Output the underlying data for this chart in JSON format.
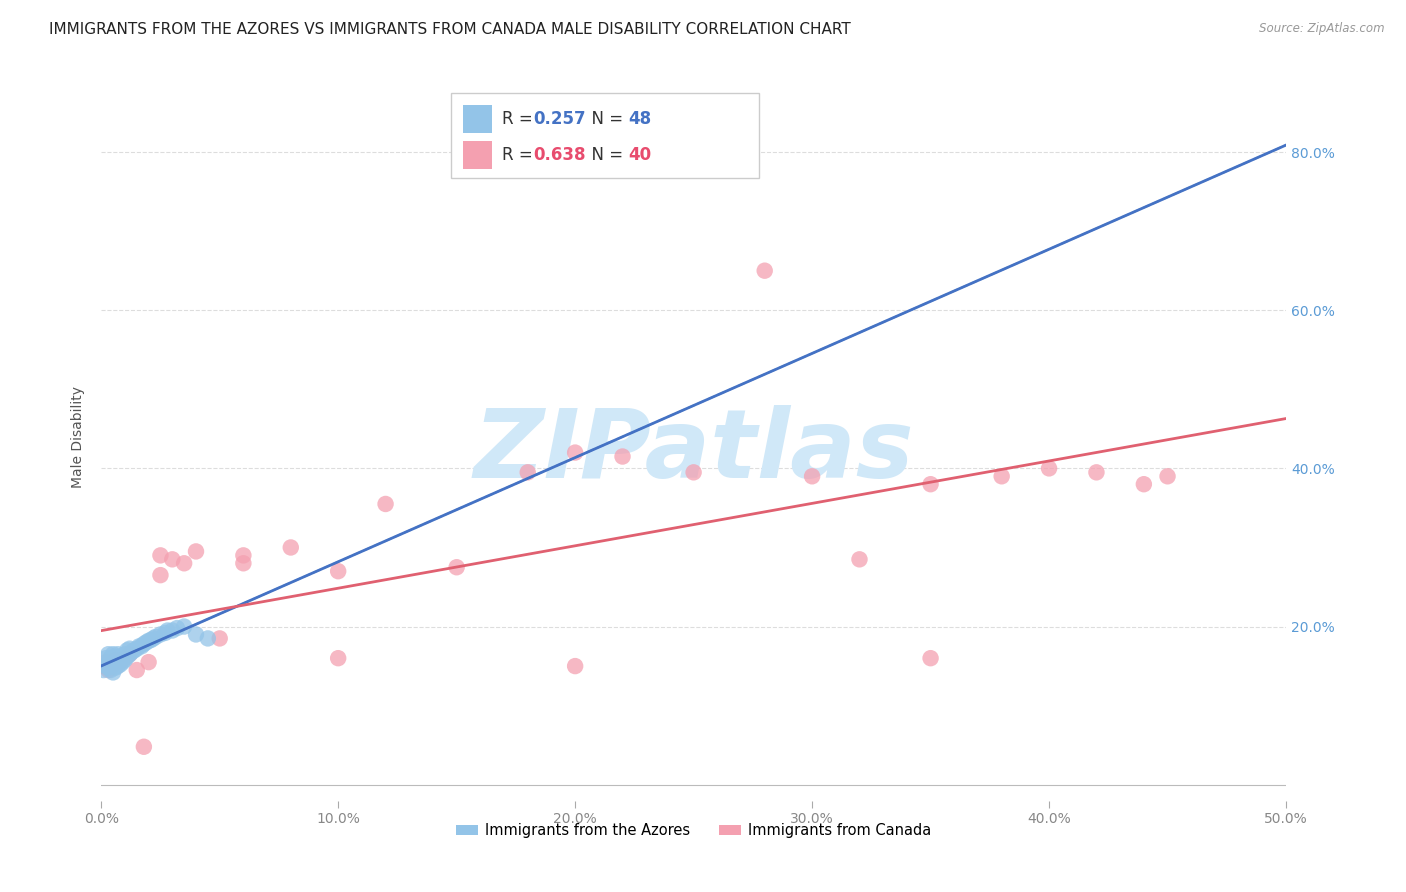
{
  "title": "IMMIGRANTS FROM THE AZORES VS IMMIGRANTS FROM CANADA MALE DISABILITY CORRELATION CHART",
  "source": "Source: ZipAtlas.com",
  "ylabel": "Male Disability",
  "x_tick_labels": [
    "0.0%",
    "10.0%",
    "20.0%",
    "30.0%",
    "40.0%",
    "50.0%"
  ],
  "y_tick_labels_right": [
    "20.0%",
    "40.0%",
    "60.0%",
    "80.0%"
  ],
  "xlim": [
    0.0,
    0.5
  ],
  "ylim": [
    -0.02,
    0.9
  ],
  "azores_R": "0.257",
  "azores_N": "48",
  "canada_R": "0.638",
  "canada_N": "40",
  "azores_x": [
    0.001,
    0.002,
    0.002,
    0.003,
    0.003,
    0.003,
    0.004,
    0.004,
    0.004,
    0.005,
    0.005,
    0.005,
    0.005,
    0.006,
    0.006,
    0.006,
    0.007,
    0.007,
    0.007,
    0.008,
    0.008,
    0.009,
    0.009,
    0.01,
    0.01,
    0.011,
    0.011,
    0.012,
    0.012,
    0.013,
    0.014,
    0.015,
    0.016,
    0.017,
    0.018,
    0.019,
    0.02,
    0.021,
    0.022,
    0.023,
    0.025,
    0.027,
    0.028,
    0.03,
    0.032,
    0.035,
    0.04,
    0.045
  ],
  "azores_y": [
    0.145,
    0.15,
    0.16,
    0.148,
    0.155,
    0.165,
    0.145,
    0.155,
    0.16,
    0.142,
    0.15,
    0.158,
    0.165,
    0.148,
    0.156,
    0.162,
    0.15,
    0.158,
    0.165,
    0.152,
    0.16,
    0.155,
    0.163,
    0.158,
    0.165,
    0.162,
    0.17,
    0.165,
    0.172,
    0.168,
    0.17,
    0.172,
    0.175,
    0.175,
    0.178,
    0.18,
    0.182,
    0.183,
    0.185,
    0.187,
    0.19,
    0.192,
    0.195,
    0.195,
    0.198,
    0.2,
    0.19,
    0.185
  ],
  "canada_x": [
    0.001,
    0.002,
    0.003,
    0.004,
    0.005,
    0.006,
    0.008,
    0.01,
    0.012,
    0.015,
    0.018,
    0.02,
    0.025,
    0.03,
    0.035,
    0.04,
    0.05,
    0.06,
    0.08,
    0.1,
    0.12,
    0.15,
    0.18,
    0.2,
    0.22,
    0.25,
    0.28,
    0.3,
    0.32,
    0.35,
    0.38,
    0.4,
    0.42,
    0.44,
    0.1,
    0.2,
    0.35,
    0.45,
    0.025,
    0.06
  ],
  "canada_y": [
    0.15,
    0.155,
    0.145,
    0.148,
    0.152,
    0.158,
    0.155,
    0.16,
    0.165,
    0.145,
    0.048,
    0.155,
    0.29,
    0.285,
    0.28,
    0.295,
    0.185,
    0.28,
    0.3,
    0.16,
    0.355,
    0.275,
    0.395,
    0.42,
    0.415,
    0.395,
    0.65,
    0.39,
    0.285,
    0.16,
    0.39,
    0.4,
    0.395,
    0.38,
    0.27,
    0.15,
    0.38,
    0.39,
    0.265,
    0.29
  ],
  "background_color": "#ffffff",
  "grid_color": "#dddddd",
  "azores_dot_color": "#93c4e8",
  "canada_dot_color": "#f4a0b0",
  "azores_solid_line_color": "#4472c4",
  "azores_dashed_line_color": "#4472c4",
  "canada_line_color": "#e06070",
  "watermark_color": "#d0e8f8",
  "watermark_text": "ZIPatlas",
  "title_fontsize": 11,
  "axis_label_fontsize": 10,
  "tick_fontsize": 10,
  "legend_r_color_azores": "#4472c4",
  "legend_r_color_canada": "#e84c6e",
  "legend_label_color": "#333333"
}
